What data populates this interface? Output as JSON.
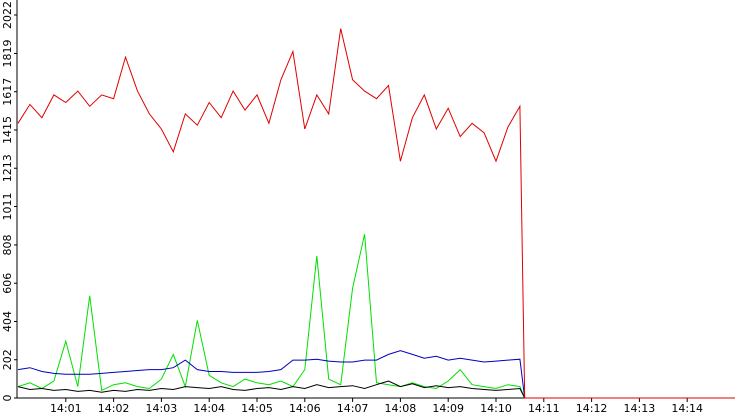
{
  "chart_data": {
    "type": "line",
    "x": [
      840,
      840.25,
      840.5,
      840.75,
      841,
      841.25,
      841.5,
      841.75,
      842,
      842.25,
      842.5,
      842.75,
      843,
      843.25,
      843.5,
      843.75,
      844,
      844.25,
      844.5,
      844.75,
      845,
      845.25,
      845.5,
      845.75,
      846,
      846.25,
      846.5,
      846.75,
      847,
      847.25,
      847.5,
      847.75,
      848,
      848.25,
      848.5,
      848.75,
      849,
      849.25,
      849.5,
      849.75,
      850,
      850.25,
      850.5,
      850.6,
      855
    ],
    "series": [
      {
        "color": "#00e000",
        "values": [
          60,
          80,
          50,
          90,
          300,
          60,
          540,
          40,
          70,
          80,
          60,
          50,
          100,
          230,
          60,
          410,
          120,
          80,
          60,
          100,
          80,
          70,
          90,
          60,
          150,
          750,
          100,
          70,
          580,
          865,
          80,
          70,
          60,
          80,
          60,
          50,
          90,
          150,
          70,
          60,
          50,
          70,
          60,
          0,
          0
        ]
      },
      {
        "color": "#0000c0",
        "values": [
          150,
          160,
          140,
          130,
          125,
          125,
          125,
          130,
          135,
          140,
          145,
          150,
          150,
          160,
          200,
          150,
          140,
          140,
          135,
          135,
          135,
          140,
          150,
          200,
          200,
          205,
          195,
          190,
          190,
          200,
          200,
          230,
          250,
          230,
          210,
          220,
          200,
          210,
          200,
          190,
          195,
          200,
          205,
          0,
          0
        ]
      },
      {
        "color": "#000000",
        "values": [
          60,
          45,
          50,
          40,
          45,
          35,
          40,
          30,
          40,
          35,
          45,
          40,
          50,
          45,
          60,
          55,
          50,
          60,
          45,
          40,
          50,
          55,
          45,
          60,
          50,
          70,
          55,
          60,
          65,
          50,
          70,
          90,
          60,
          75,
          55,
          65,
          55,
          60,
          50,
          45,
          40,
          45,
          50,
          0,
          0
        ]
      },
      {
        "color": "#e00000",
        "values": [
          1450,
          1550,
          1480,
          1600,
          1560,
          1620,
          1540,
          1600,
          1580,
          1800,
          1620,
          1500,
          1420,
          1300,
          1500,
          1440,
          1560,
          1480,
          1620,
          1520,
          1600,
          1450,
          1680,
          1830,
          1420,
          1600,
          1500,
          1950,
          1680,
          1620,
          1580,
          1650,
          1250,
          1480,
          1600,
          1420,
          1530,
          1380,
          1450,
          1400,
          1250,
          1430,
          1540,
          0,
          0
        ]
      }
    ],
    "xlim": [
      840,
      855
    ],
    "xticks": [
      {
        "value": 841,
        "label": "14:01"
      },
      {
        "value": 842,
        "label": "14:02"
      },
      {
        "value": 843,
        "label": "14:03"
      },
      {
        "value": 844,
        "label": "14:04"
      },
      {
        "value": 845,
        "label": "14:05"
      },
      {
        "value": 846,
        "label": "14:06"
      },
      {
        "value": 847,
        "label": "14:07"
      },
      {
        "value": 848,
        "label": "14:08"
      },
      {
        "value": 849,
        "label": "14:09"
      },
      {
        "value": 850,
        "label": "14:10"
      },
      {
        "value": 851,
        "label": "14:11"
      },
      {
        "value": 852,
        "label": "14:12"
      },
      {
        "value": 853,
        "label": "14:13"
      },
      {
        "value": 854,
        "label": "14:14"
      }
    ],
    "ylim": [
      0,
      2022
    ],
    "yticks": [
      0,
      202,
      404,
      606,
      808,
      1011,
      1213,
      1415,
      1617,
      1819,
      2022
    ]
  }
}
